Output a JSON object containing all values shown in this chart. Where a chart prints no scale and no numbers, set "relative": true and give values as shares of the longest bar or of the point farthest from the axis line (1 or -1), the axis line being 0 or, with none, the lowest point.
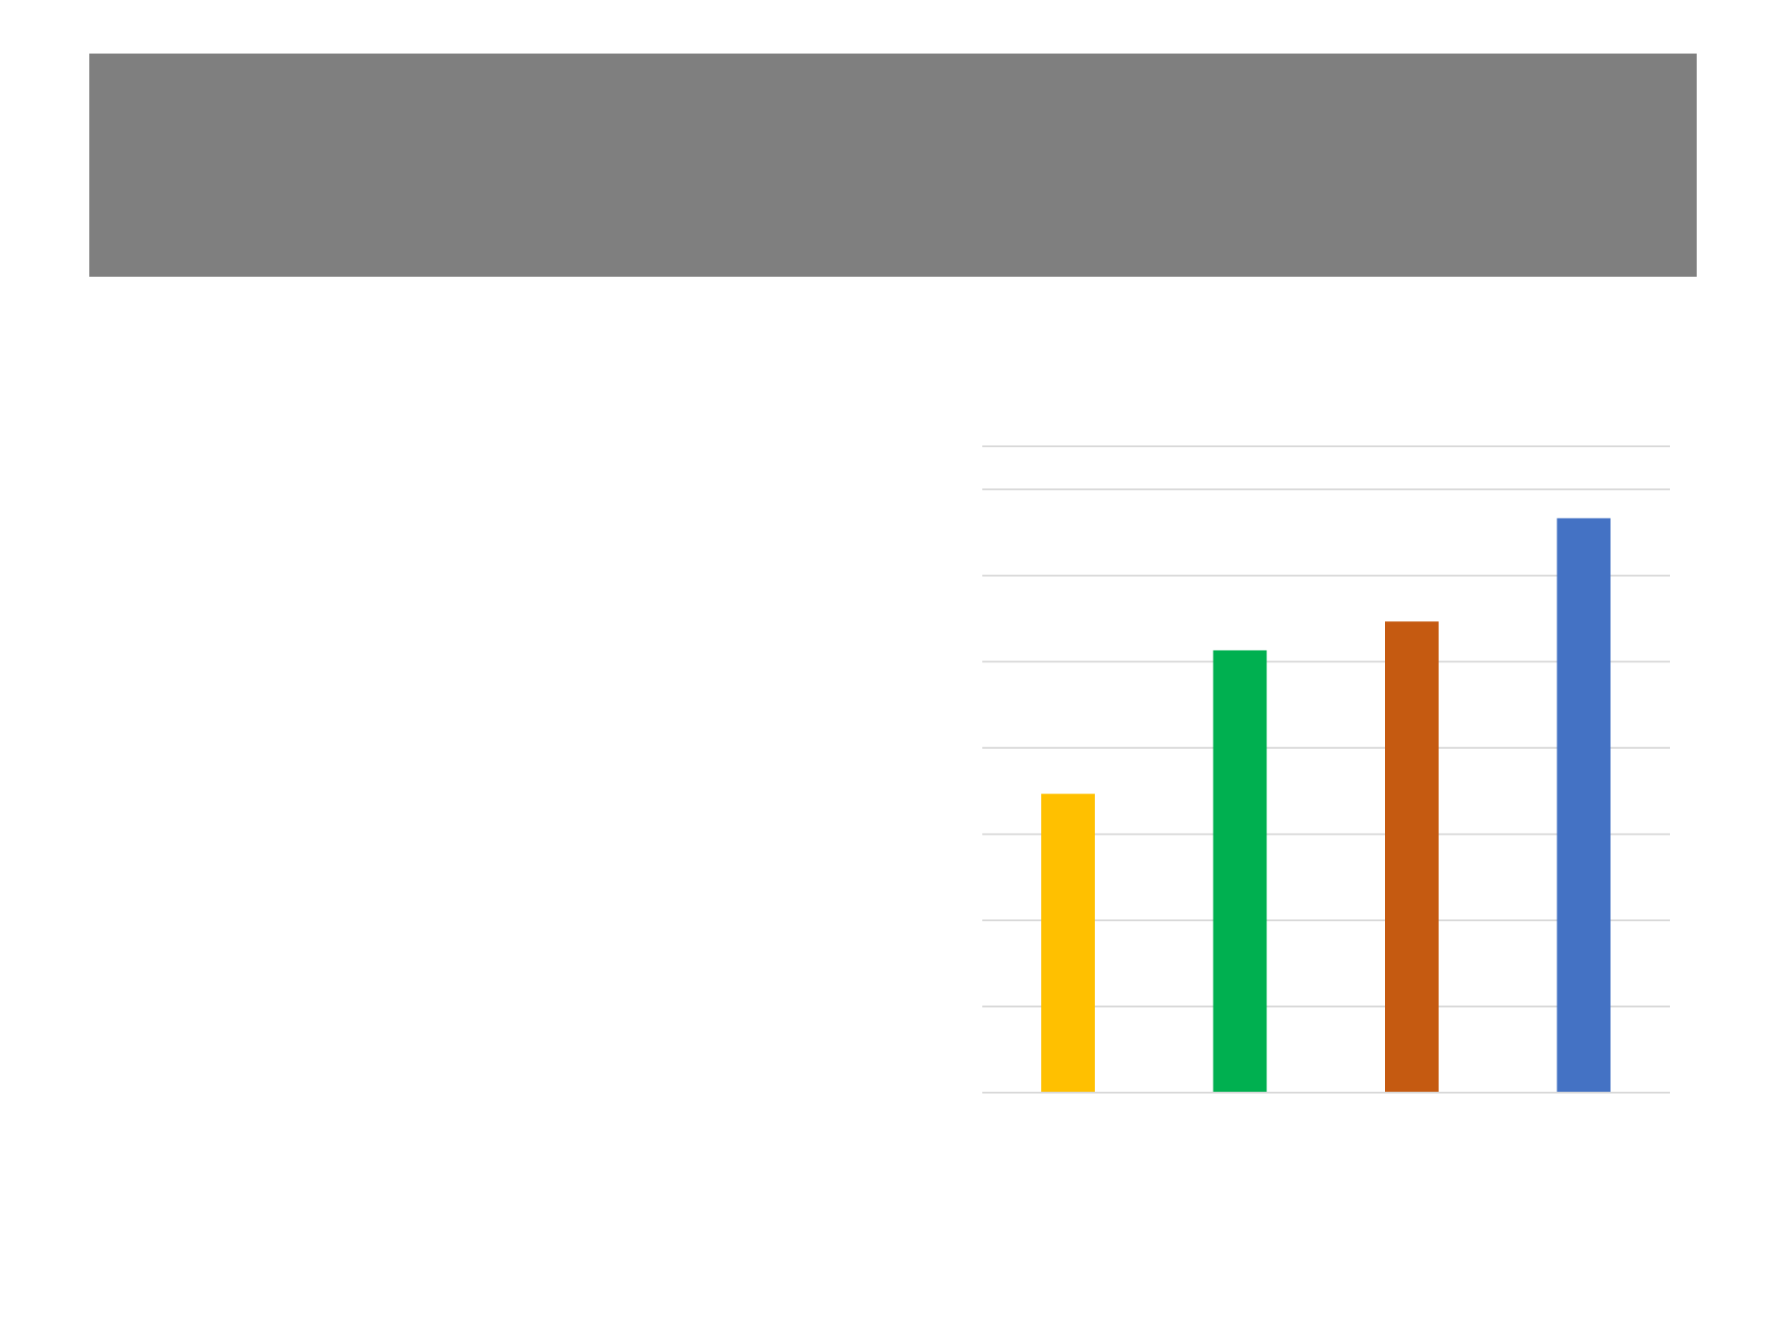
{
  "chart_data": {
    "type": "bar",
    "relative": true,
    "categories": [
      null,
      null,
      null,
      null
    ],
    "values": [
      0.52,
      0.77,
      0.82,
      1
    ],
    "colors": [
      "#ffc000",
      "#00b050",
      "#c55a11",
      "#4472c4"
    ],
    "grid": "y"
  }
}
